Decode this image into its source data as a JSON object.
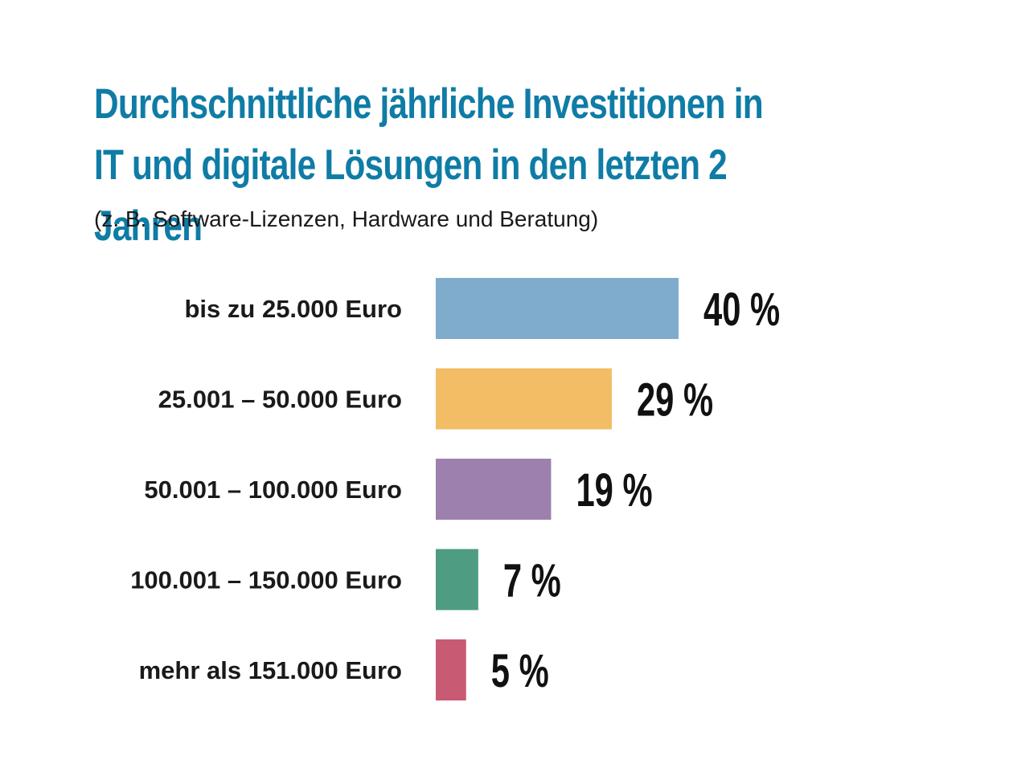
{
  "chart_data": {
    "type": "bar",
    "orientation": "horizontal",
    "title": "Durchschnittliche jährliche Investitionen in IT und digitale Lösungen in den letzten 2 Jahren",
    "subtitle": "(z. B. Software-Lizenzen, Hardware und Beratung)",
    "categories": [
      "bis zu 25.000 Euro",
      "25.001 – 50.000 Euro",
      "50.001 – 100.000 Euro",
      "100.001 – 150.000 Euro",
      "mehr als 151.000 Euro"
    ],
    "values": [
      40,
      29,
      19,
      7,
      5
    ],
    "value_labels": [
      "40 %",
      "29 %",
      "19 %",
      "7 %",
      "5 %"
    ],
    "colors": [
      "#7fabcd",
      "#f3bd65",
      "#9d80ad",
      "#4e9c82",
      "#c85a74"
    ],
    "xlim": [
      0,
      40
    ],
    "grid": false,
    "legend": "none"
  }
}
